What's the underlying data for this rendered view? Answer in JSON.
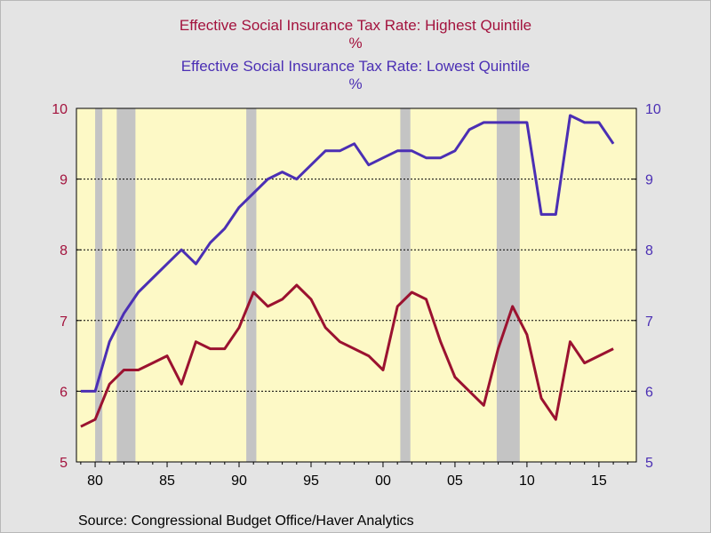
{
  "header": {
    "title_high": "Effective Social Insurance Tax Rate: Highest Quintile",
    "unit_high": "%",
    "title_low": "Effective Social Insurance Tax Rate: Lowest Quintile",
    "unit_low": "%"
  },
  "footer": {
    "source": "Source:  Congressional Budget Office/Haver Analytics"
  },
  "colors": {
    "background": "#e4e4e4",
    "plot_area": "#fdf9c6",
    "highest_quintile": "#9b1230",
    "lowest_quintile": "#4b2fb4",
    "recession_shading": "#c4c4c4"
  },
  "chart_data": {
    "type": "line",
    "x_ticks": [
      1980,
      1985,
      1990,
      1995,
      2000,
      2005,
      2010,
      2015
    ],
    "x_tick_labels": [
      "80",
      "85",
      "90",
      "95",
      "00",
      "05",
      "10",
      "15"
    ],
    "xlim": [
      1978.7,
      2017.6
    ],
    "y_left": {
      "ylim": [
        5,
        10
      ],
      "ticks": [
        5,
        6,
        7,
        8,
        9,
        10
      ],
      "color": "#a3123d"
    },
    "y_right": {
      "ylim": [
        5,
        10
      ],
      "ticks": [
        5,
        6,
        7,
        8,
        9,
        10
      ],
      "color": "#4b2fb4"
    },
    "gridlines": [
      6,
      7,
      8,
      9
    ],
    "recessions": [
      [
        1980.0,
        1980.5
      ],
      [
        1981.5,
        1982.8
      ],
      [
        1990.5,
        1991.2
      ],
      [
        2001.2,
        2001.9
      ],
      [
        2007.9,
        2009.5
      ]
    ],
    "series": [
      {
        "name": "Effective Social Insurance Tax Rate: Highest Quintile",
        "axis": "left",
        "x": [
          1979,
          1980,
          1981,
          1982,
          1983,
          1984,
          1985,
          1986,
          1987,
          1988,
          1989,
          1990,
          1991,
          1992,
          1993,
          1994,
          1995,
          1996,
          1997,
          1998,
          1999,
          2000,
          2001,
          2002,
          2003,
          2004,
          2005,
          2006,
          2007,
          2008,
          2009,
          2010,
          2011,
          2012,
          2013,
          2014,
          2015,
          2016
        ],
        "values": [
          5.5,
          5.6,
          6.1,
          6.3,
          6.3,
          6.4,
          6.5,
          6.1,
          6.7,
          6.6,
          6.6,
          6.9,
          7.4,
          7.2,
          7.3,
          7.5,
          7.3,
          6.9,
          6.7,
          6.6,
          6.5,
          6.3,
          7.2,
          7.4,
          7.3,
          6.7,
          6.2,
          6.0,
          5.8,
          6.6,
          7.2,
          6.8,
          5.9,
          5.6,
          6.7,
          6.4,
          6.5,
          6.6
        ]
      },
      {
        "name": "Effective Social Insurance Tax Rate: Lowest Quintile",
        "axis": "right",
        "x": [
          1979,
          1980,
          1981,
          1982,
          1983,
          1984,
          1985,
          1986,
          1987,
          1988,
          1989,
          1990,
          1991,
          1992,
          1993,
          1994,
          1995,
          1996,
          1997,
          1998,
          1999,
          2000,
          2001,
          2002,
          2003,
          2004,
          2005,
          2006,
          2007,
          2008,
          2009,
          2010,
          2011,
          2012,
          2013,
          2014,
          2015,
          2016
        ],
        "values": [
          6.0,
          6.0,
          6.7,
          7.1,
          7.4,
          7.6,
          7.8,
          8.0,
          7.8,
          8.1,
          8.3,
          8.6,
          8.8,
          9.0,
          9.1,
          9.0,
          9.2,
          9.4,
          9.4,
          9.5,
          9.2,
          9.3,
          9.4,
          9.4,
          9.3,
          9.3,
          9.4,
          9.7,
          9.8,
          9.8,
          9.8,
          9.8,
          8.5,
          8.5,
          9.9,
          9.8,
          9.8,
          9.5
        ]
      }
    ]
  }
}
